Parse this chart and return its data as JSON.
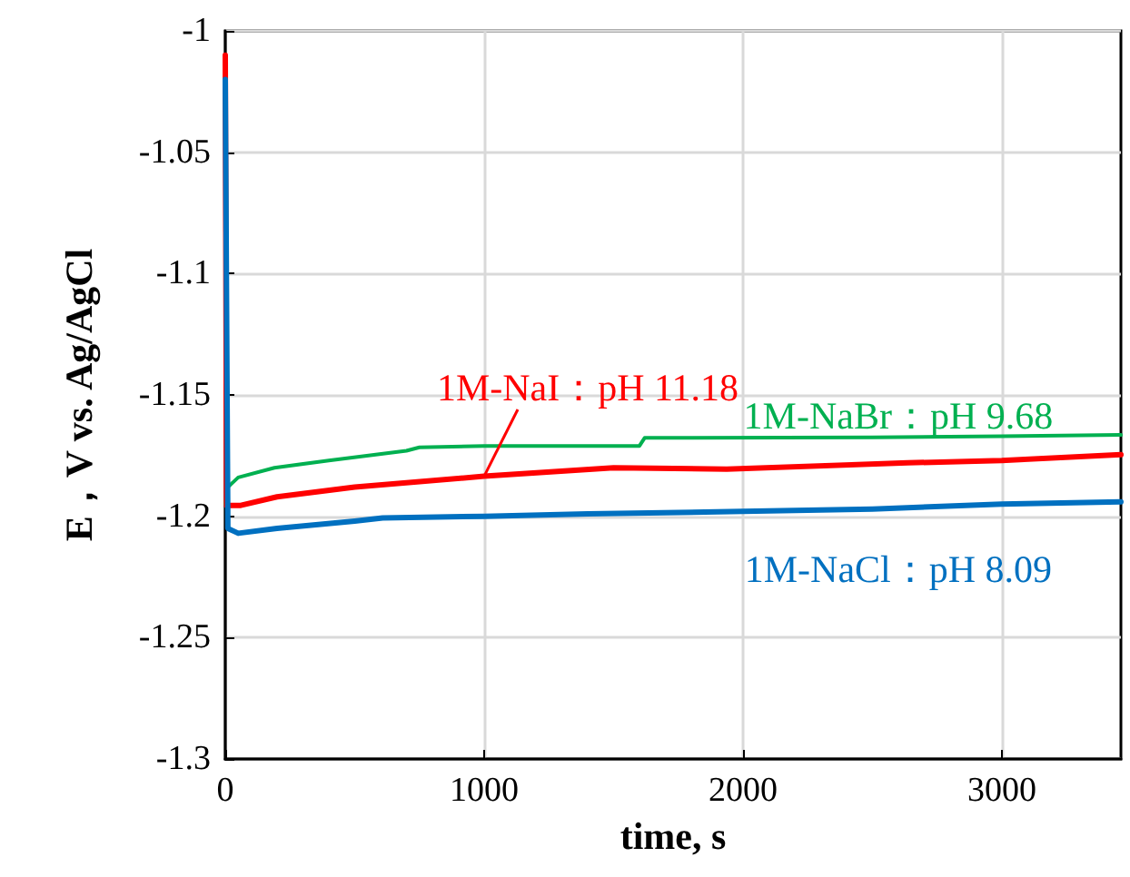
{
  "chart_data": {
    "type": "line",
    "xlabel": "time, s",
    "ylabel": "E，V vs. Ag/AgCl",
    "xlim": [
      0,
      3460
    ],
    "xticks": [
      0,
      1000,
      2000,
      3000
    ],
    "ylim": [
      -1.3,
      -1
    ],
    "yticks": [
      -1.3,
      -1.25,
      -1.2,
      -1.15,
      -1.1,
      -1.05,
      -1
    ],
    "grid": true,
    "legend": false,
    "marker": "none",
    "line_style": "solid",
    "series": [
      {
        "name": "1M-NaBr：pH 9.68",
        "color": "#00b050",
        "x": [
          0,
          10,
          50,
          190,
          400,
          700,
          750,
          1000,
          1600,
          1620,
          2500,
          3000,
          3460
        ],
        "values": [
          -1.195,
          -1.188,
          -1.184,
          -1.18,
          -1.177,
          -1.173,
          -1.1716,
          -1.171,
          -1.171,
          -1.1677,
          -1.1675,
          -1.167,
          -1.1665
        ]
      },
      {
        "name": "1M-NaI：pH 11.18",
        "color": "#ff0000",
        "x": [
          0,
          5,
          60,
          200,
          500,
          1000,
          1500,
          1937,
          2636,
          3000,
          3460
        ],
        "values": [
          -1.01,
          -1.1955,
          -1.1955,
          -1.192,
          -1.188,
          -1.1835,
          -1.18,
          -1.1806,
          -1.178,
          -1.177,
          -1.1746
        ]
      },
      {
        "name": "1M-NaCl：pH 8.09",
        "color": "#0070c0",
        "x": [
          0,
          10,
          50,
          200,
          500,
          608,
          1000,
          1400,
          2000,
          2500,
          3000,
          3460
        ],
        "values": [
          -1.02,
          -1.205,
          -1.207,
          -1.205,
          -1.202,
          -1.2007,
          -1.2,
          -1.199,
          -1.198,
          -1.197,
          -1.195,
          -1.194
        ]
      }
    ]
  }
}
